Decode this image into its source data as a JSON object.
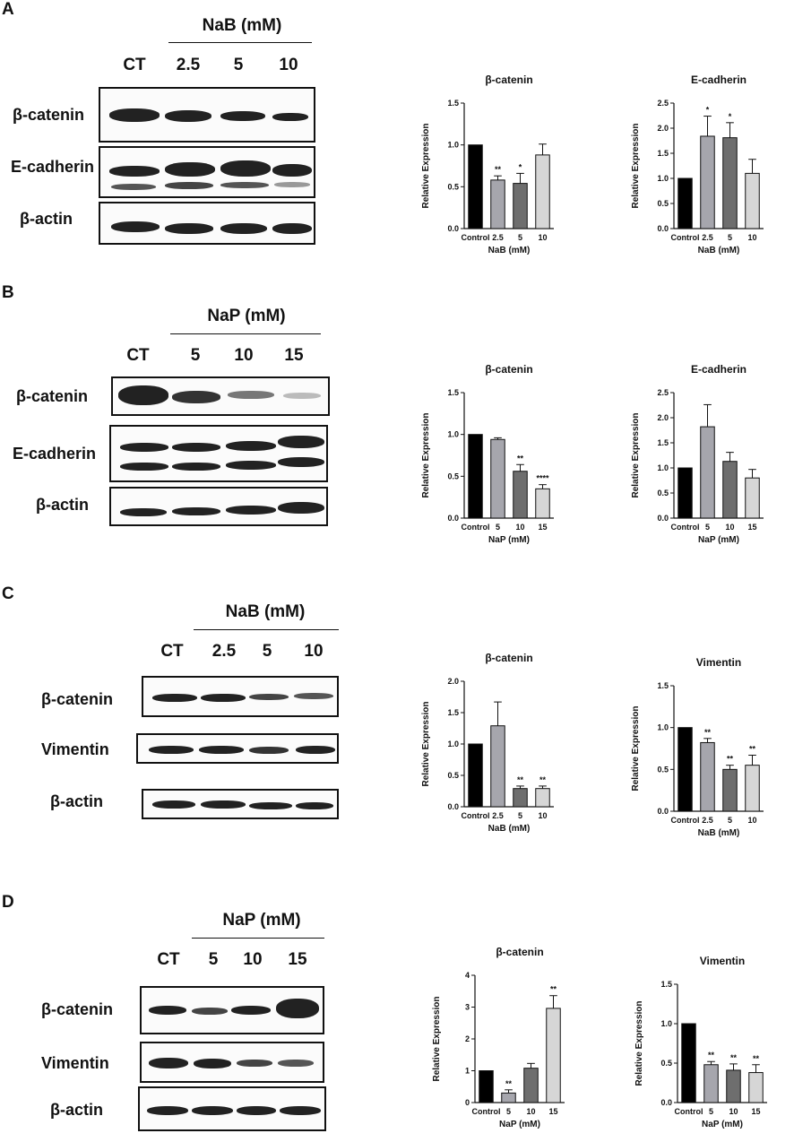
{
  "panels": [
    {
      "letter": "A",
      "treatment": "NaB (mM)",
      "lanes": [
        "CT",
        "2.5",
        "5",
        "10"
      ],
      "rows": [
        "β-catenin",
        "E-cadherin",
        "β-actin"
      ]
    },
    {
      "letter": "B",
      "treatment": "NaP (mM)",
      "lanes": [
        "CT",
        "5",
        "10",
        "15"
      ],
      "rows": [
        "β-catenin",
        "E-cadherin",
        "β-actin"
      ]
    },
    {
      "letter": "C",
      "treatment": "NaB (mM)",
      "lanes": [
        "CT",
        "2.5",
        "5",
        "10"
      ],
      "rows": [
        "β-catenin",
        "Vimentin",
        "β-actin"
      ]
    },
    {
      "letter": "D",
      "treatment": "NaP (mM)",
      "lanes": [
        "CT",
        "5",
        "10",
        "15"
      ],
      "rows": [
        "β-catenin",
        "Vimentin",
        "β-actin"
      ]
    }
  ],
  "chart_data": [
    {
      "type": "bar",
      "title": "β-catenin",
      "xlabel": "NaB (mM)",
      "ylabel": "Relative Expression",
      "categories": [
        "Control",
        "2.5",
        "5",
        "10"
      ],
      "values": [
        1.0,
        0.58,
        0.54,
        0.88
      ],
      "errors": [
        0,
        0.05,
        0.12,
        0.13
      ],
      "significance": [
        "",
        "**",
        "*",
        ""
      ],
      "ylim": [
        0,
        1.5
      ],
      "yticks": [
        "0.0",
        "0.5",
        "1.0",
        "1.5"
      ],
      "colors": [
        "#000000",
        "#a6a6ad",
        "#6e6e6e",
        "#d6d6d6"
      ]
    },
    {
      "type": "bar",
      "title": "E-cadherin",
      "xlabel": "NaB (mM)",
      "ylabel": "Relative Expression",
      "categories": [
        "Control",
        "2.5",
        "5",
        "10"
      ],
      "values": [
        1.0,
        1.84,
        1.81,
        1.1
      ],
      "errors": [
        0,
        0.4,
        0.3,
        0.28
      ],
      "significance": [
        "",
        "*",
        "*",
        ""
      ],
      "ylim": [
        0,
        2.5
      ],
      "yticks": [
        "0.0",
        "0.5",
        "1.0",
        "1.5",
        "2.0",
        "2.5"
      ],
      "colors": [
        "#000000",
        "#a6a6ad",
        "#6e6e6e",
        "#d6d6d6"
      ]
    },
    {
      "type": "bar",
      "title": "β-catenin",
      "xlabel": "NaP (mM)",
      "ylabel": "Relative Expression",
      "categories": [
        "Control",
        "5",
        "10",
        "15"
      ],
      "values": [
        1.0,
        0.94,
        0.56,
        0.35
      ],
      "errors": [
        0,
        0.02,
        0.08,
        0.05
      ],
      "significance": [
        "",
        "",
        "**",
        "****"
      ],
      "ylim": [
        0,
        1.5
      ],
      "yticks": [
        "0.0",
        "0.5",
        "1.0",
        "1.5"
      ],
      "colors": [
        "#000000",
        "#a6a6ad",
        "#6e6e6e",
        "#d6d6d6"
      ]
    },
    {
      "type": "bar",
      "title": "E-cadherin",
      "xlabel": "NaP (mM)",
      "ylabel": "Relative Expression",
      "categories": [
        "Control",
        "5",
        "10",
        "15"
      ],
      "values": [
        1.0,
        1.82,
        1.13,
        0.8
      ],
      "errors": [
        0,
        0.44,
        0.18,
        0.17
      ],
      "significance": [
        "",
        "",
        "",
        ""
      ],
      "ylim": [
        0,
        2.5
      ],
      "yticks": [
        "0.0",
        "0.5",
        "1.0",
        "1.5",
        "2.0",
        "2.5"
      ],
      "colors": [
        "#000000",
        "#a6a6ad",
        "#6e6e6e",
        "#d6d6d6"
      ]
    },
    {
      "type": "bar",
      "title": "β-catenin",
      "xlabel": "NaB (mM)",
      "ylabel": "Relative Expression",
      "categories": [
        "Control",
        "2.5",
        "5",
        "10"
      ],
      "values": [
        1.0,
        1.29,
        0.29,
        0.29
      ],
      "errors": [
        0,
        0.38,
        0.04,
        0.04
      ],
      "significance": [
        "",
        "",
        "**",
        "**"
      ],
      "ylim": [
        0,
        2.0
      ],
      "yticks": [
        "0.0",
        "0.5",
        "1.0",
        "1.5",
        "2.0"
      ],
      "colors": [
        "#000000",
        "#a6a6ad",
        "#6e6e6e",
        "#d6d6d6"
      ]
    },
    {
      "type": "bar",
      "title": "Vimentin",
      "xlabel": "NaB (mM)",
      "ylabel": "Relative Expression",
      "categories": [
        "Control",
        "2.5",
        "5",
        "10"
      ],
      "values": [
        1.0,
        0.82,
        0.5,
        0.55
      ],
      "errors": [
        0,
        0.05,
        0.05,
        0.12
      ],
      "significance": [
        "",
        "**",
        "**",
        "**"
      ],
      "ylim": [
        0,
        1.5
      ],
      "yticks": [
        "0.0",
        "0.5",
        "1.0",
        "1.5"
      ],
      "colors": [
        "#000000",
        "#a6a6ad",
        "#6e6e6e",
        "#d6d6d6"
      ]
    },
    {
      "type": "bar",
      "title": "β-catenin",
      "xlabel": "NaP (mM)",
      "ylabel": "Relative Expression",
      "categories": [
        "Control",
        "5",
        "10",
        "15"
      ],
      "values": [
        1.0,
        0.3,
        1.08,
        2.96
      ],
      "errors": [
        0,
        0.1,
        0.15,
        0.4
      ],
      "significance": [
        "",
        "**",
        "",
        "**"
      ],
      "ylim": [
        0,
        4
      ],
      "yticks": [
        "0",
        "1",
        "2",
        "3",
        "4"
      ],
      "colors": [
        "#000000",
        "#a6a6ad",
        "#6e6e6e",
        "#d6d6d6"
      ]
    },
    {
      "type": "bar",
      "title": "Vimentin",
      "xlabel": "NaP (mM)",
      "ylabel": "Relative Expression",
      "categories": [
        "Control",
        "5",
        "10",
        "15"
      ],
      "values": [
        1.0,
        0.48,
        0.41,
        0.38
      ],
      "errors": [
        0,
        0.04,
        0.08,
        0.1
      ],
      "significance": [
        "",
        "**",
        "**",
        "**"
      ],
      "ylim": [
        0,
        1.5
      ],
      "yticks": [
        "0.0",
        "0.5",
        "1.0",
        "1.5"
      ],
      "colors": [
        "#000000",
        "#a6a6ad",
        "#6e6e6e",
        "#d6d6d6"
      ]
    }
  ]
}
